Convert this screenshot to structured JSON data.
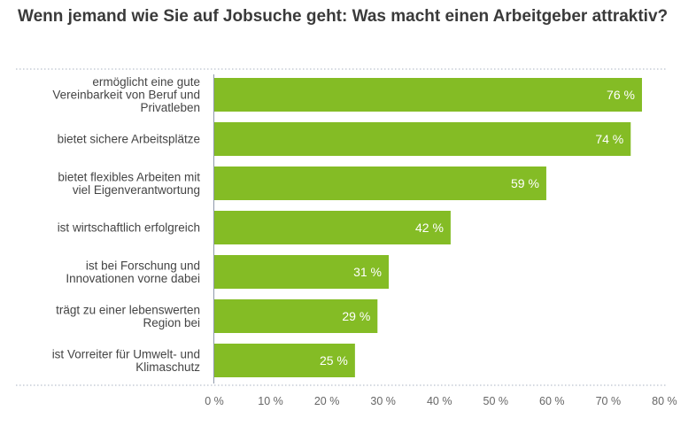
{
  "chart_data": {
    "type": "bar",
    "orientation": "horizontal",
    "title": "Wenn jemand wie Sie auf Jobsuche geht: Was macht einen Arbeitgeber attraktiv?",
    "categories": [
      [
        "ermöglicht eine gute",
        "Vereinbarkeit von Beruf und",
        "Privatleben"
      ],
      [
        "bietet sichere Arbeitsplätze"
      ],
      [
        "bietet flexibles Arbeiten mit",
        "viel Eigenverantwortung"
      ],
      [
        "ist wirtschaftlich erfolgreich"
      ],
      [
        "ist bei Forschung und",
        "Innovationen vorne dabei"
      ],
      [
        "trägt zu einer lebenswerten",
        "Region bei"
      ],
      [
        "ist Vorreiter für Umwelt- und",
        "Klimaschutz"
      ]
    ],
    "values": [
      76,
      74,
      59,
      42,
      31,
      29,
      25
    ],
    "value_labels": [
      "76 %",
      "74 %",
      "59 %",
      "42 %",
      "31 %",
      "29 %",
      "25 %"
    ],
    "xlim": [
      0,
      80
    ],
    "x_ticks": [
      0,
      10,
      20,
      30,
      40,
      50,
      60,
      70,
      80
    ],
    "x_tick_labels": [
      "0 %",
      "10 %",
      "20 %",
      "30 %",
      "40 %",
      "50 %",
      "60 %",
      "70 %",
      "80 %"
    ],
    "xlabel": "",
    "ylabel": "",
    "grid": false,
    "legend": "none",
    "colors": {
      "bar": "#84bc25",
      "title": "#3a3a3a",
      "axis_line": "#9aa6b8"
    }
  }
}
